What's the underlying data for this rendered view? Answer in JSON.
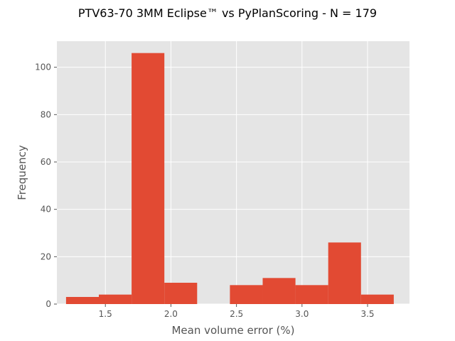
{
  "chart_data": {
    "type": "bar",
    "title": "PTV63-70 3MM Eclipse™ vs PyPlanScoring - N = 179",
    "xlabel": "Mean volume error (%)",
    "ylabel": "Frequency",
    "xlim": [
      1.13,
      3.82
    ],
    "ylim": [
      0,
      111
    ],
    "xticks": [
      1.5,
      2.0,
      2.5,
      3.0,
      3.5
    ],
    "xtick_labels": [
      "1.5",
      "2.0",
      "2.5",
      "3.0",
      "3.5"
    ],
    "yticks": [
      0,
      20,
      40,
      60,
      80,
      100
    ],
    "ytick_labels": [
      "0",
      "20",
      "40",
      "60",
      "80",
      "100"
    ],
    "grid": true,
    "bins": [
      {
        "x0": 1.2,
        "x1": 1.45,
        "count": 3
      },
      {
        "x0": 1.45,
        "x1": 1.7,
        "count": 4
      },
      {
        "x0": 1.7,
        "x1": 1.95,
        "count": 106
      },
      {
        "x0": 1.95,
        "x1": 2.2,
        "count": 9
      },
      {
        "x0": 2.2,
        "x1": 2.45,
        "count": 0
      },
      {
        "x0": 2.45,
        "x1": 2.7,
        "count": 8
      },
      {
        "x0": 2.7,
        "x1": 2.95,
        "count": 11
      },
      {
        "x0": 2.95,
        "x1": 3.2,
        "count": 8
      },
      {
        "x0": 3.2,
        "x1": 3.45,
        "count": 26
      },
      {
        "x0": 3.45,
        "x1": 3.7,
        "count": 4
      }
    ],
    "colors": {
      "bar": "#E24A33",
      "plot_background": "#E5E5E5",
      "grid": "#FFFFFF",
      "tick_text": "#555555"
    }
  }
}
